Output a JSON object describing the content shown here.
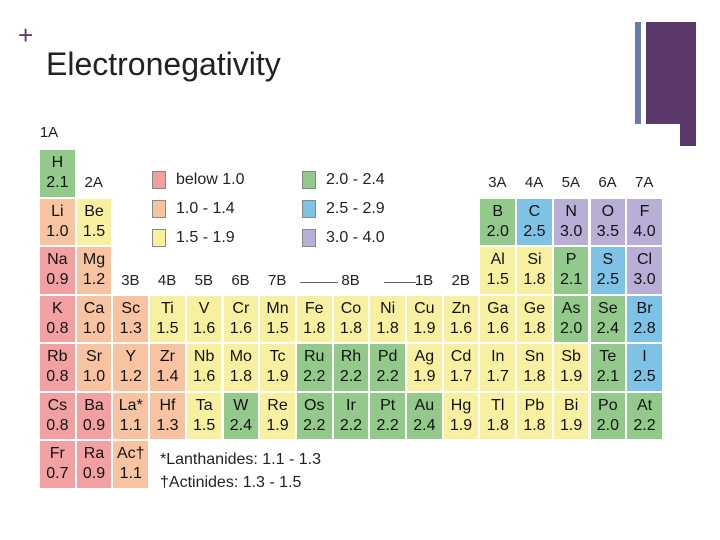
{
  "slide": {
    "plus": "+",
    "title": "Electronegativity"
  },
  "colors": {
    "below_1_0": "#f2a0a2",
    "1_0_to_1_4": "#f7c3a0",
    "1_5_to_1_9": "#f6f0a0",
    "2_0_to_2_4": "#93c98a",
    "2_5_to_2_9": "#7ec3e6",
    "3_0_to_4_0": "#b8aed6"
  },
  "group_labels": [
    "1A",
    "2A",
    "3B",
    "4B",
    "5B",
    "6B",
    "7B",
    "8B",
    "1B",
    "2B",
    "3A",
    "4A",
    "5A",
    "6A",
    "7A"
  ],
  "legend": [
    {
      "label": "below 1.0",
      "color": "below_1_0"
    },
    {
      "label": "1.0 - 1.4",
      "color": "1_0_to_1_4"
    },
    {
      "label": "1.5 - 1.9",
      "color": "1_5_to_1_9"
    },
    {
      "label": "2.0 - 2.4",
      "color": "2_0_to_2_4"
    },
    {
      "label": "2.5 - 2.9",
      "color": "2_5_to_2_9"
    },
    {
      "label": "3.0 - 4.0",
      "color": "3_0_to_4_0"
    }
  ],
  "elements": [
    {
      "s": "H",
      "en": "2.1",
      "row": 1,
      "col": 1
    },
    {
      "s": "Li",
      "en": "1.0",
      "row": 2,
      "col": 1
    },
    {
      "s": "Be",
      "en": "1.5",
      "row": 2,
      "col": 2
    },
    {
      "s": "B",
      "en": "2.0",
      "row": 2,
      "col": 13
    },
    {
      "s": "C",
      "en": "2.5",
      "row": 2,
      "col": 14
    },
    {
      "s": "N",
      "en": "3.0",
      "row": 2,
      "col": 15
    },
    {
      "s": "O",
      "en": "3.5",
      "row": 2,
      "col": 16
    },
    {
      "s": "F",
      "en": "4.0",
      "row": 2,
      "col": 17
    },
    {
      "s": "Na",
      "en": "0.9",
      "row": 3,
      "col": 1
    },
    {
      "s": "Mg",
      "en": "1.2",
      "row": 3,
      "col": 2
    },
    {
      "s": "Al",
      "en": "1.5",
      "row": 3,
      "col": 13
    },
    {
      "s": "Si",
      "en": "1.8",
      "row": 3,
      "col": 14
    },
    {
      "s": "P",
      "en": "2.1",
      "row": 3,
      "col": 15
    },
    {
      "s": "S",
      "en": "2.5",
      "row": 3,
      "col": 16
    },
    {
      "s": "Cl",
      "en": "3.0",
      "row": 3,
      "col": 17
    },
    {
      "s": "K",
      "en": "0.8",
      "row": 4,
      "col": 1
    },
    {
      "s": "Ca",
      "en": "1.0",
      "row": 4,
      "col": 2
    },
    {
      "s": "Sc",
      "en": "1.3",
      "row": 4,
      "col": 3
    },
    {
      "s": "Ti",
      "en": "1.5",
      "row": 4,
      "col": 4
    },
    {
      "s": "V",
      "en": "1.6",
      "row": 4,
      "col": 5
    },
    {
      "s": "Cr",
      "en": "1.6",
      "row": 4,
      "col": 6
    },
    {
      "s": "Mn",
      "en": "1.5",
      "row": 4,
      "col": 7
    },
    {
      "s": "Fe",
      "en": "1.8",
      "row": 4,
      "col": 8
    },
    {
      "s": "Co",
      "en": "1.8",
      "row": 4,
      "col": 9
    },
    {
      "s": "Ni",
      "en": "1.8",
      "row": 4,
      "col": 10
    },
    {
      "s": "Cu",
      "en": "1.9",
      "row": 4,
      "col": 11
    },
    {
      "s": "Zn",
      "en": "1.6",
      "row": 4,
      "col": 12
    },
    {
      "s": "Ga",
      "en": "1.6",
      "row": 4,
      "col": 13
    },
    {
      "s": "Ge",
      "en": "1.8",
      "row": 4,
      "col": 14
    },
    {
      "s": "As",
      "en": "2.0",
      "row": 4,
      "col": 15
    },
    {
      "s": "Se",
      "en": "2.4",
      "row": 4,
      "col": 16
    },
    {
      "s": "Br",
      "en": "2.8",
      "row": 4,
      "col": 17
    },
    {
      "s": "Rb",
      "en": "0.8",
      "row": 5,
      "col": 1
    },
    {
      "s": "Sr",
      "en": "1.0",
      "row": 5,
      "col": 2
    },
    {
      "s": "Y",
      "en": "1.2",
      "row": 5,
      "col": 3
    },
    {
      "s": "Zr",
      "en": "1.4",
      "row": 5,
      "col": 4
    },
    {
      "s": "Nb",
      "en": "1.6",
      "row": 5,
      "col": 5
    },
    {
      "s": "Mo",
      "en": "1.8",
      "row": 5,
      "col": 6
    },
    {
      "s": "Tc",
      "en": "1.9",
      "row": 5,
      "col": 7
    },
    {
      "s": "Ru",
      "en": "2.2",
      "row": 5,
      "col": 8
    },
    {
      "s": "Rh",
      "en": "2.2",
      "row": 5,
      "col": 9
    },
    {
      "s": "Pd",
      "en": "2.2",
      "row": 5,
      "col": 10
    },
    {
      "s": "Ag",
      "en": "1.9",
      "row": 5,
      "col": 11
    },
    {
      "s": "Cd",
      "en": "1.7",
      "row": 5,
      "col": 12
    },
    {
      "s": "In",
      "en": "1.7",
      "row": 5,
      "col": 13
    },
    {
      "s": "Sn",
      "en": "1.8",
      "row": 5,
      "col": 14
    },
    {
      "s": "Sb",
      "en": "1.9",
      "row": 5,
      "col": 15
    },
    {
      "s": "Te",
      "en": "2.1",
      "row": 5,
      "col": 16
    },
    {
      "s": "I",
      "en": "2.5",
      "row": 5,
      "col": 17
    },
    {
      "s": "Cs",
      "en": "0.8",
      "row": 6,
      "col": 1
    },
    {
      "s": "Ba",
      "en": "0.9",
      "row": 6,
      "col": 2
    },
    {
      "s": "La*",
      "en": "1.1",
      "row": 6,
      "col": 3
    },
    {
      "s": "Hf",
      "en": "1.3",
      "row": 6,
      "col": 4
    },
    {
      "s": "Ta",
      "en": "1.5",
      "row": 6,
      "col": 5
    },
    {
      "s": "W",
      "en": "2.4",
      "row": 6,
      "col": 6
    },
    {
      "s": "Re",
      "en": "1.9",
      "row": 6,
      "col": 7
    },
    {
      "s": "Os",
      "en": "2.2",
      "row": 6,
      "col": 8
    },
    {
      "s": "Ir",
      "en": "2.2",
      "row": 6,
      "col": 9
    },
    {
      "s": "Pt",
      "en": "2.2",
      "row": 6,
      "col": 10
    },
    {
      "s": "Au",
      "en": "2.4",
      "row": 6,
      "col": 11
    },
    {
      "s": "Hg",
      "en": "1.9",
      "row": 6,
      "col": 12
    },
    {
      "s": "Tl",
      "en": "1.8",
      "row": 6,
      "col": 13
    },
    {
      "s": "Pb",
      "en": "1.8",
      "row": 6,
      "col": 14
    },
    {
      "s": "Bi",
      "en": "1.9",
      "row": 6,
      "col": 15
    },
    {
      "s": "Po",
      "en": "2.0",
      "row": 6,
      "col": 16
    },
    {
      "s": "At",
      "en": "2.2",
      "row": 6,
      "col": 17
    },
    {
      "s": "Fr",
      "en": "0.7",
      "row": 7,
      "col": 1
    },
    {
      "s": "Ra",
      "en": "0.9",
      "row": 7,
      "col": 2
    },
    {
      "s": "Ac†",
      "en": "1.1",
      "row": 7,
      "col": 3
    }
  ],
  "notes": {
    "lanthanides": "*Lanthanides: 1.1 - 1.3",
    "actinides": "†Actinides: 1.3 - 1.5"
  }
}
